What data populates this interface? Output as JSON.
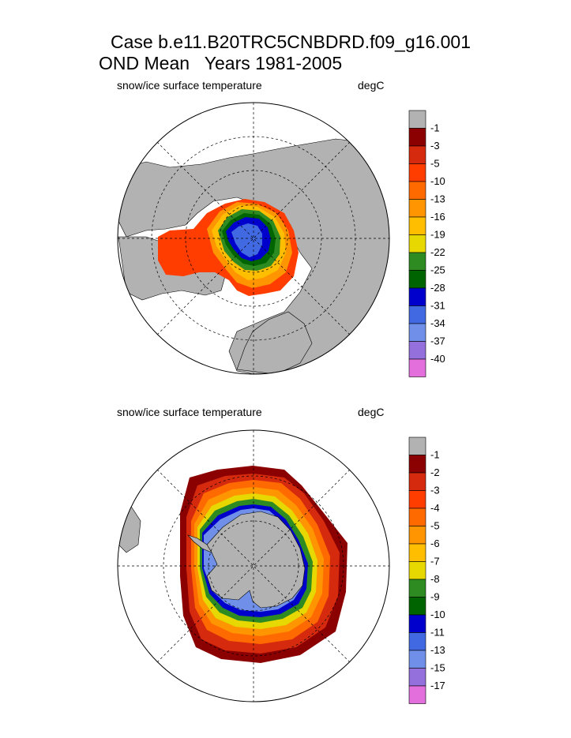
{
  "title": {
    "line1": "Case b.e11.B20TRC5CNBDRD.f09_g16.001",
    "line2": "OND Mean   Years 1981-2005"
  },
  "panels": [
    {
      "hemisphere": "north",
      "left_label": "snow/ice surface temperature",
      "right_label": "degC",
      "colorbar": {
        "colors": [
          "#b2b2b2",
          "#8b0000",
          "#d62a0e",
          "#ff3d00",
          "#ff6a00",
          "#ff9500",
          "#ffbf00",
          "#e6d800",
          "#2e8b22",
          "#006400",
          "#0000cd",
          "#4169e1",
          "#6f8fe8",
          "#9370db",
          "#e26fdb"
        ],
        "labels": [
          "-1",
          "-3",
          "-5",
          "-10",
          "-13",
          "-16",
          "-19",
          "-22",
          "-25",
          "-28",
          "-31",
          "-34",
          "-37",
          "-40"
        ]
      }
    },
    {
      "hemisphere": "south",
      "left_label": "snow/ice surface temperature",
      "right_label": "degC",
      "colorbar": {
        "colors": [
          "#b2b2b2",
          "#8b0000",
          "#d62a0e",
          "#ff3d00",
          "#ff6a00",
          "#ff9500",
          "#ffbf00",
          "#e6d800",
          "#2e8b22",
          "#006400",
          "#0000cd",
          "#4169e1",
          "#6f8fe8",
          "#9370db",
          "#e26fdb"
        ],
        "labels": [
          "-1",
          "-2",
          "-3",
          "-4",
          "-5",
          "-6",
          "-7",
          "-8",
          "-9",
          "-10",
          "-11",
          "-13",
          "-15",
          "-17"
        ]
      }
    }
  ]
}
